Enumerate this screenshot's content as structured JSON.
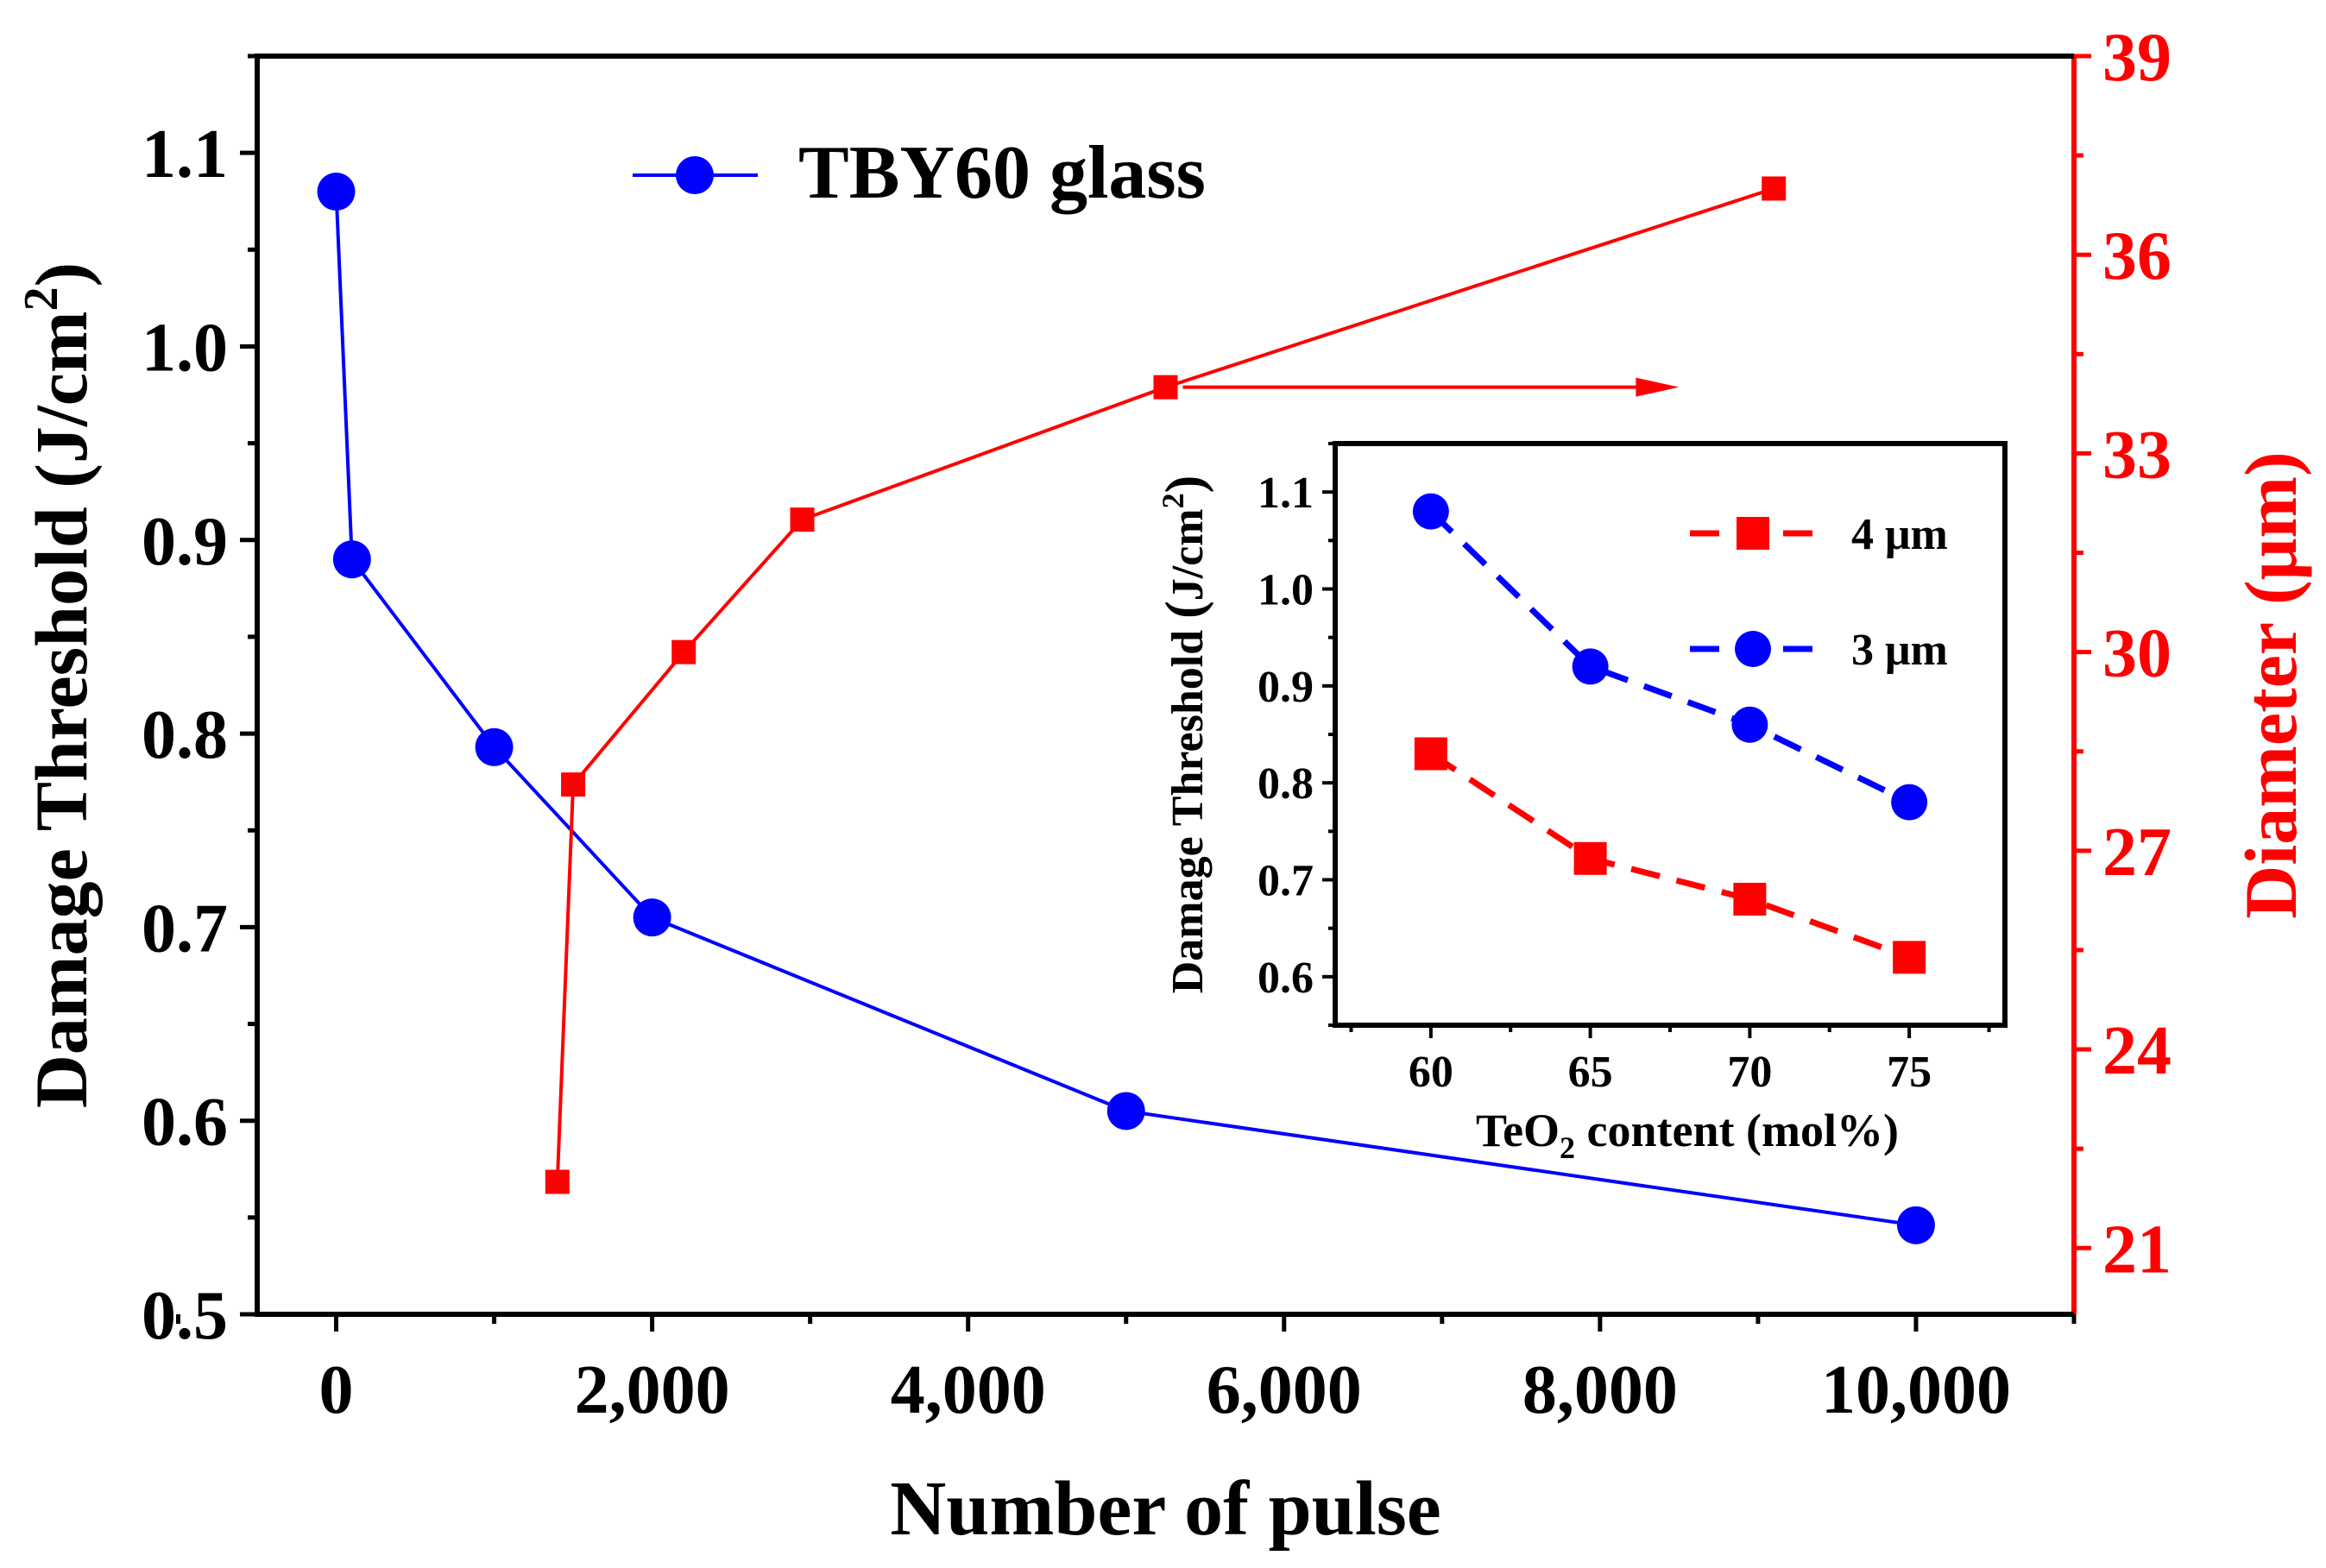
{
  "chart_data": [
    {
      "type": "line",
      "xlabel": "Number of pulse",
      "ylabel_left": "Damage Threshold (J/cm2)",
      "ylabel_left_parts": [
        "Damage Threshold (J/cm",
        "2",
        ")"
      ],
      "ylabel_right": "Diameter (μm)",
      "xlim": [
        -500,
        11000
      ],
      "xticks": [
        0,
        2000,
        4000,
        6000,
        8000,
        10000
      ],
      "xtick_labels": [
        "0",
        "2,000",
        "4,000",
        "6,000",
        "8,000",
        "10,000"
      ],
      "ylim_left": [
        0.5,
        1.15
      ],
      "yticks_left": [
        0.5,
        0.6,
        0.7,
        0.8,
        0.9,
        1.0,
        1.1
      ],
      "ytick_labels_left": [
        "0.5",
        "0.6",
        "0.7",
        "0.8",
        "0.9",
        "1.0",
        "1.1"
      ],
      "ylim_right": [
        20,
        39
      ],
      "yticks_right": [
        21,
        24,
        27,
        30,
        33,
        36,
        39
      ],
      "ytick_labels_right": [
        "21",
        "24",
        "27",
        "30",
        "33",
        "36",
        "39"
      ],
      "legend": {
        "label": "TBY60 glass",
        "position": "top-center"
      },
      "series": [
        {
          "name": "TBY60 glass",
          "axis": "left",
          "color": "#0000ff",
          "marker": "circle",
          "x": [
            0,
            100,
            1000,
            2000,
            5000,
            10000
          ],
          "y": [
            1.08,
            0.89,
            0.793,
            0.705,
            0.605,
            0.546
          ]
        },
        {
          "name": "Diameter",
          "axis": "right",
          "color": "#ff0000",
          "marker": "square",
          "x": [
            1400,
            1500,
            2200,
            2950,
            5250,
            9100
          ],
          "y": [
            22,
            28,
            30,
            32,
            34,
            37
          ]
        }
      ],
      "annotation": {
        "type": "arrow",
        "direction": "right",
        "axis": "right",
        "color": "#ff0000",
        "x_from": 5250,
        "x_to": 8500,
        "y": 34
      }
    },
    {
      "type": "line",
      "role": "inset",
      "xlabel": "TeO2 content (mol%)",
      "xlabel_parts": [
        "TeO",
        "2",
        " content (mol%)"
      ],
      "ylabel": "Damage Threshold (J/cm2)",
      "ylabel_parts": [
        "Damage Threshold ",
        "(",
        "J/cm",
        "2",
        ")"
      ],
      "xlim": [
        57,
        78
      ],
      "xticks": [
        60,
        65,
        70,
        75
      ],
      "xtick_labels": [
        "60",
        "65",
        "70",
        "75"
      ],
      "ylim": [
        0.55,
        1.15
      ],
      "yticks": [
        0.6,
        0.7,
        0.8,
        0.9,
        1.0,
        1.1
      ],
      "ytick_labels": [
        "0.6",
        "0.7",
        "0.8",
        "0.9",
        "1.0",
        "1.1"
      ],
      "legend": {
        "position": "top-right"
      },
      "series": [
        {
          "name": "4 μm",
          "color": "#ff0000",
          "marker": "square",
          "linestyle": "dashed",
          "x": [
            60,
            65,
            70,
            75
          ],
          "y": [
            0.83,
            0.722,
            0.68,
            0.62
          ]
        },
        {
          "name": "3 μm",
          "color": "#0000ff",
          "marker": "circle",
          "linestyle": "dashed",
          "x": [
            60,
            65,
            70,
            75
          ],
          "y": [
            1.08,
            0.92,
            0.86,
            0.78
          ]
        }
      ]
    }
  ]
}
